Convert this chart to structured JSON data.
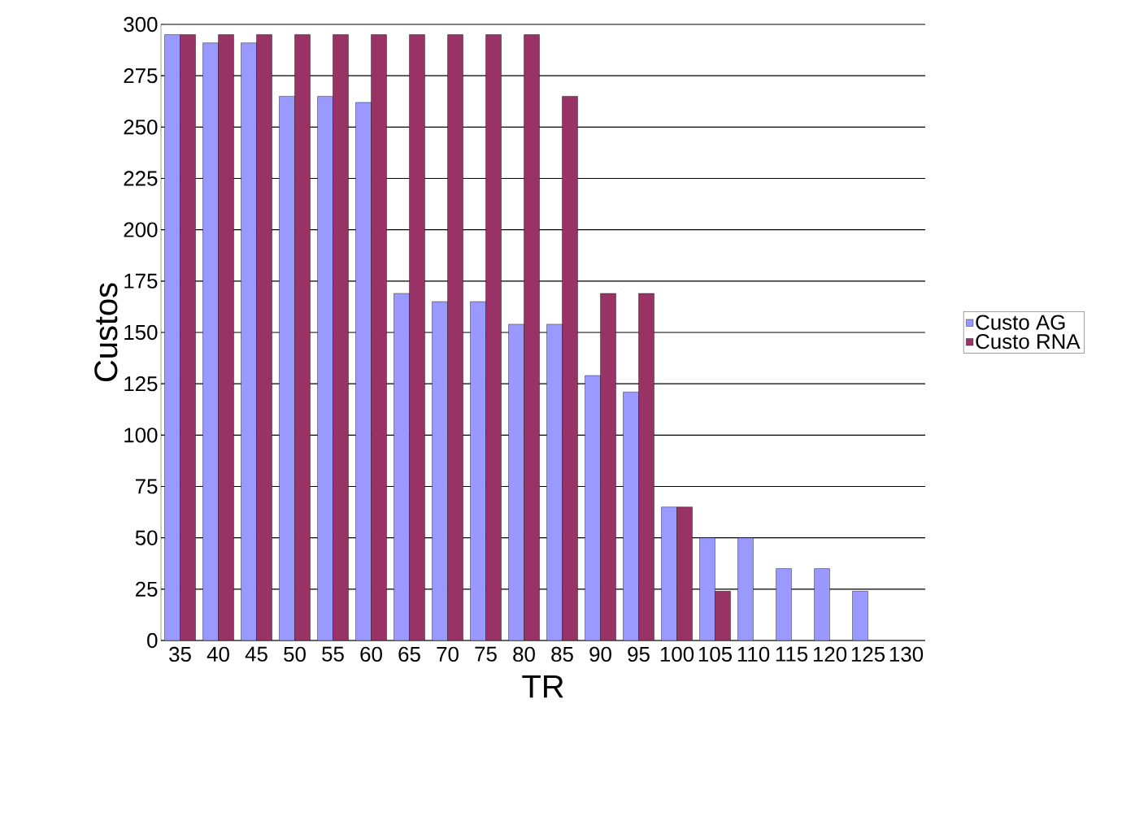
{
  "chart_data": {
    "type": "bar",
    "xlabel": "TR",
    "ylabel": "Custos",
    "categories": [
      "35",
      "40",
      "45",
      "50",
      "55",
      "60",
      "65",
      "70",
      "75",
      "80",
      "85",
      "90",
      "95",
      "100",
      "105",
      "110",
      "115",
      "120",
      "125",
      "130"
    ],
    "series": [
      {
        "name": "Custo AG",
        "color": "#9999ff",
        "values": [
          295,
          291,
          291,
          265,
          265,
          262,
          169,
          165,
          165,
          154,
          154,
          129,
          121,
          65,
          50,
          50,
          35,
          35,
          24,
          null
        ]
      },
      {
        "name": "Custo RNA",
        "color": "#993366",
        "values": [
          295,
          295,
          295,
          295,
          295,
          295,
          295,
          295,
          295,
          295,
          265,
          169,
          169,
          65,
          24,
          null,
          null,
          null,
          null,
          null
        ]
      }
    ],
    "ylim": [
      0,
      300
    ],
    "yticks": [
      0,
      25,
      50,
      75,
      100,
      125,
      150,
      175,
      200,
      225,
      250,
      275,
      300
    ],
    "grid": "y",
    "legend": "right"
  }
}
